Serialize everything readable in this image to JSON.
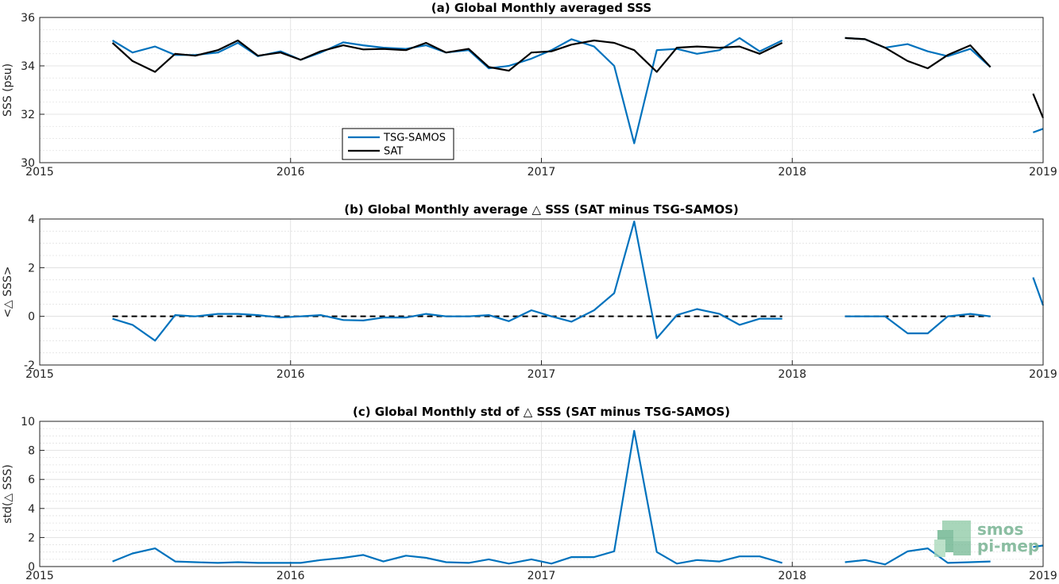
{
  "chart_data": [
    {
      "type": "line",
      "title": "(a) Global Monthly averaged SSS",
      "ylabel": "SSS (psu)",
      "xlim": [
        2015,
        2019
      ],
      "ylim": [
        30,
        36
      ],
      "xticks": [
        "2015",
        "2016",
        "2017",
        "2018",
        "2019"
      ],
      "yticks": [
        "30",
        "32",
        "34",
        "36"
      ],
      "grid": true,
      "legend": "inside lower-left",
      "x": [
        2015.29,
        2015.37,
        2015.46,
        2015.54,
        2015.62,
        2015.71,
        2015.79,
        2015.87,
        2015.96,
        2016.04,
        2016.12,
        2016.21,
        2016.29,
        2016.37,
        2016.46,
        2016.54,
        2016.62,
        2016.71,
        2016.79,
        2016.87,
        2016.96,
        2017.04,
        2017.12,
        2017.21,
        2017.29,
        2017.37,
        2017.46,
        2017.54,
        2017.62,
        2017.71,
        2017.79,
        2017.87,
        2017.96,
        2018.04,
        2018.12,
        2018.21,
        2018.29,
        2018.37,
        2018.46,
        2018.54,
        2018.62,
        2018.71,
        2018.79,
        2018.87,
        2018.96,
        2019.0
      ],
      "series": [
        {
          "name": "TSG-SAMOS",
          "color": "#0072bd",
          "values": [
            35.05,
            34.55,
            34.8,
            34.45,
            34.45,
            34.55,
            34.95,
            34.4,
            34.6,
            34.25,
            34.55,
            34.97,
            34.85,
            34.75,
            34.7,
            34.85,
            34.55,
            34.65,
            33.9,
            34.0,
            34.3,
            34.65,
            35.1,
            34.8,
            34.0,
            30.8,
            34.65,
            34.7,
            34.5,
            34.65,
            35.15,
            34.6,
            35.05,
            null,
            null,
            35.15,
            35.1,
            34.75,
            34.9,
            34.6,
            34.4,
            34.7,
            33.95,
            null,
            31.25,
            31.4
          ]
        },
        {
          "name": "SAT",
          "color": "#000000",
          "values": [
            34.95,
            34.2,
            33.75,
            34.5,
            34.42,
            34.65,
            35.05,
            34.42,
            34.55,
            34.25,
            34.6,
            34.85,
            34.68,
            34.7,
            34.65,
            34.95,
            34.55,
            34.7,
            33.95,
            33.8,
            34.55,
            34.6,
            34.88,
            35.05,
            34.95,
            34.65,
            33.75,
            34.75,
            34.8,
            34.75,
            34.8,
            34.5,
            34.95,
            null,
            null,
            35.15,
            35.1,
            34.75,
            34.2,
            33.9,
            34.45,
            34.85,
            33.95,
            null,
            32.85,
            31.85
          ]
        }
      ]
    },
    {
      "type": "line",
      "title": "(b) Global Monthly average △ SSS (SAT minus TSG-SAMOS)",
      "ylabel": "<△ SSS>",
      "xlim": [
        2015,
        2019
      ],
      "ylim": [
        -2,
        4
      ],
      "xticks": [
        "2015",
        "2016",
        "2017",
        "2018",
        "2019"
      ],
      "yticks": [
        "-2",
        "0",
        "2",
        "4"
      ],
      "grid": true,
      "reference_line": {
        "y": 0,
        "style": "dashed",
        "color": "#000000",
        "segments": [
          [
            2015.29,
            2017.96
          ],
          [
            2018.21,
            2018.79
          ]
        ]
      },
      "x": [
        2015.29,
        2015.37,
        2015.46,
        2015.54,
        2015.62,
        2015.71,
        2015.79,
        2015.87,
        2015.96,
        2016.04,
        2016.12,
        2016.21,
        2016.29,
        2016.37,
        2016.46,
        2016.54,
        2016.62,
        2016.71,
        2016.79,
        2016.87,
        2016.96,
        2017.04,
        2017.12,
        2017.21,
        2017.29,
        2017.37,
        2017.46,
        2017.54,
        2017.62,
        2017.71,
        2017.79,
        2017.87,
        2017.96,
        2018.04,
        2018.12,
        2018.21,
        2018.29,
        2018.37,
        2018.46,
        2018.54,
        2018.62,
        2018.71,
        2018.79,
        2018.87,
        2018.96,
        2019.0
      ],
      "series": [
        {
          "name": "",
          "color": "#0072bd",
          "values": [
            -0.1,
            -0.35,
            -1.0,
            0.05,
            0.0,
            0.1,
            0.1,
            0.05,
            -0.05,
            0.0,
            0.05,
            -0.15,
            -0.17,
            -0.05,
            -0.05,
            0.1,
            0.0,
            0.0,
            0.05,
            -0.2,
            0.25,
            0.0,
            -0.22,
            0.25,
            0.95,
            3.9,
            -0.9,
            0.05,
            0.3,
            0.1,
            -0.35,
            -0.1,
            -0.1,
            null,
            null,
            0.0,
            0.0,
            0.0,
            -0.7,
            -0.7,
            0.0,
            0.1,
            0.0,
            null,
            1.6,
            0.45
          ]
        }
      ]
    },
    {
      "type": "line",
      "title": "(c) Global Monthly std of △ SSS (SAT minus TSG-SAMOS)",
      "ylabel": "std(△ SSS)",
      "xlim": [
        2015,
        2019
      ],
      "ylim": [
        0,
        10
      ],
      "xticks": [
        "2015",
        "2016",
        "2017",
        "2018",
        "2019"
      ],
      "yticks": [
        "0",
        "2",
        "4",
        "6",
        "8",
        "10"
      ],
      "grid": true,
      "x": [
        2015.29,
        2015.37,
        2015.46,
        2015.54,
        2015.62,
        2015.71,
        2015.79,
        2015.87,
        2015.96,
        2016.04,
        2016.12,
        2016.21,
        2016.29,
        2016.37,
        2016.46,
        2016.54,
        2016.62,
        2016.71,
        2016.79,
        2016.87,
        2016.96,
        2017.04,
        2017.12,
        2017.21,
        2017.29,
        2017.37,
        2017.46,
        2017.54,
        2017.62,
        2017.71,
        2017.79,
        2017.87,
        2017.96,
        2018.04,
        2018.12,
        2018.21,
        2018.29,
        2018.37,
        2018.46,
        2018.54,
        2018.62,
        2018.71,
        2018.79,
        2018.87,
        2018.96,
        2019.0
      ],
      "series": [
        {
          "name": "",
          "color": "#0072bd",
          "values": [
            0.35,
            0.9,
            1.25,
            0.35,
            0.3,
            0.25,
            0.3,
            0.25,
            0.25,
            0.25,
            0.45,
            0.6,
            0.8,
            0.35,
            0.75,
            0.6,
            0.3,
            0.25,
            0.5,
            0.2,
            0.5,
            0.2,
            0.65,
            0.65,
            1.05,
            9.35,
            1.0,
            0.2,
            0.45,
            0.35,
            0.7,
            0.7,
            0.25,
            null,
            null,
            0.3,
            0.45,
            0.15,
            1.05,
            1.25,
            0.25,
            0.3,
            0.35,
            null,
            1.35,
            1.45
          ]
        }
      ]
    }
  ],
  "watermark": {
    "line1": "smos",
    "line2": "pi-mep",
    "color": "#6fae8c"
  }
}
